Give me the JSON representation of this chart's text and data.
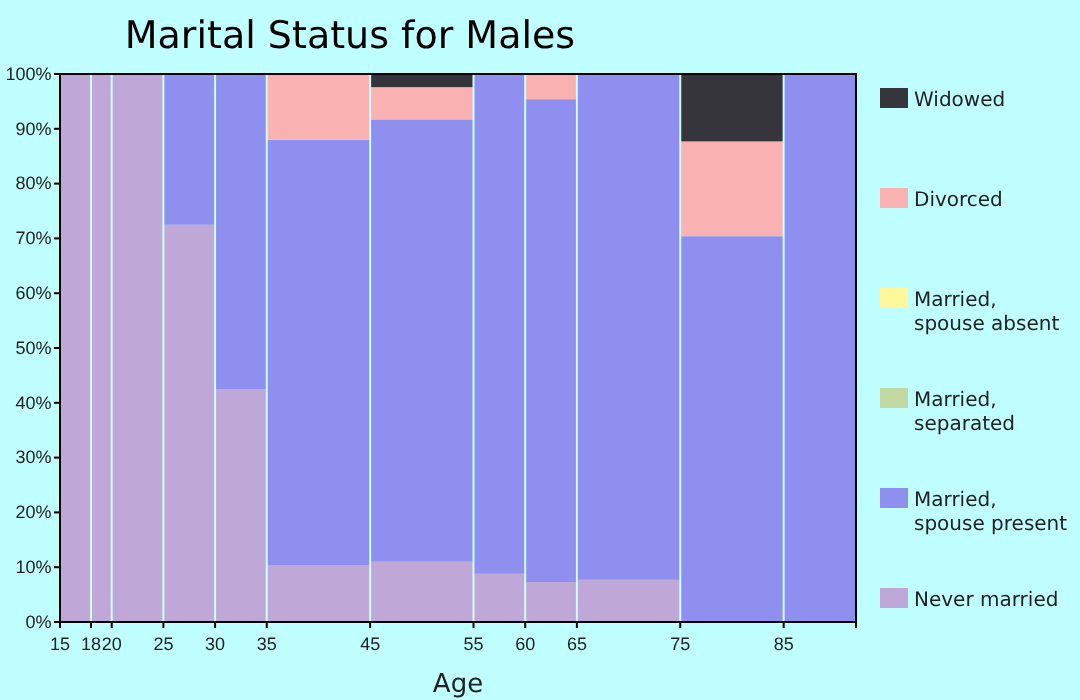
{
  "chart_data": {
    "type": "bar",
    "stacked": true,
    "title": "Marital Status for Males",
    "xlabel": "Age",
    "x": [
      16.5,
      19,
      22.5,
      27.5,
      32.5,
      40,
      50,
      57.5,
      62.5,
      70,
      80,
      88.5
    ],
    "xlim": [
      15,
      92
    ],
    "xticks": [
      15,
      18,
      20,
      25,
      30,
      35,
      45,
      55,
      60,
      65,
      75,
      85
    ],
    "ylim": [
      0,
      100
    ],
    "yticks": [
      {
        "value": 0,
        "label": "0%"
      },
      {
        "value": 10,
        "label": "10%"
      },
      {
        "value": 20,
        "label": "20%"
      },
      {
        "value": 30,
        "label": "30%"
      },
      {
        "value": 40,
        "label": "40%"
      },
      {
        "value": 50,
        "label": "50%"
      },
      {
        "value": 60,
        "label": "60%"
      },
      {
        "value": 70,
        "label": "70%"
      },
      {
        "value": 80,
        "label": "80%"
      },
      {
        "value": 90,
        "label": "90%"
      },
      {
        "value": 100,
        "label": "100%"
      }
    ],
    "grid": "x",
    "legend": "right",
    "series": [
      {
        "name": "Never married",
        "color": "#bfa8d8",
        "values": [
          100,
          100,
          100,
          72.5,
          42.5,
          10.3,
          11,
          8.8,
          7.3,
          7.7,
          0,
          0
        ]
      },
      {
        "name": "Married, spouse present",
        "color": "#8f8ff0",
        "values": [
          0,
          0,
          0,
          27.5,
          57.5,
          77.7,
          80.7,
          91.2,
          88.1,
          92.3,
          70.4,
          100
        ]
      },
      {
        "name": "Married, separated",
        "color": "#c2d9a3",
        "values": [
          0,
          0,
          0,
          0,
          0,
          0,
          0,
          0,
          0,
          0,
          0,
          0
        ]
      },
      {
        "name": "Married, spouse absent",
        "color": "#fff799",
        "values": [
          0,
          0,
          0,
          0,
          0,
          0,
          0,
          0,
          0,
          0,
          0,
          0
        ]
      },
      {
        "name": "Divorced",
        "color": "#f9b1b1",
        "values": [
          0,
          0,
          0,
          0,
          0,
          12,
          5.9,
          0,
          4.6,
          0,
          17.3,
          0
        ]
      },
      {
        "name": "Widowed",
        "color": "#35353b",
        "values": [
          0,
          0,
          0,
          0,
          0,
          0,
          2.4,
          0,
          0,
          0,
          12.3,
          0
        ]
      }
    ]
  }
}
